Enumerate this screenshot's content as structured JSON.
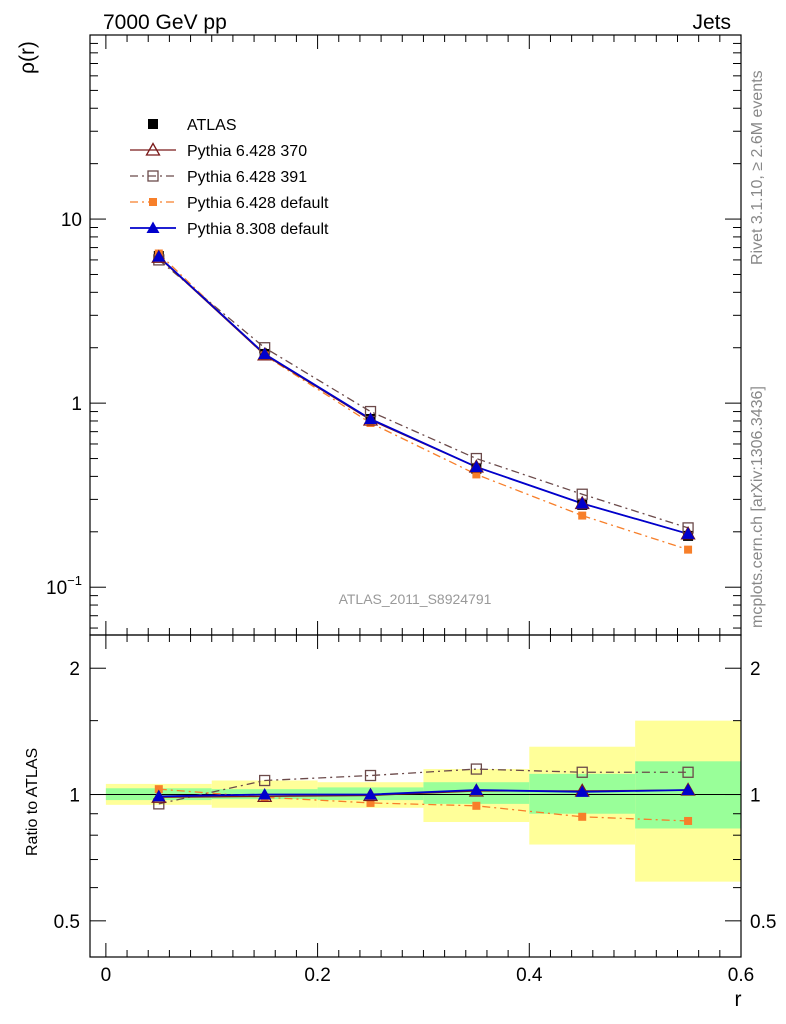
{
  "header": {
    "left": "7000 GeV pp",
    "right": "Jets"
  },
  "side_labels": {
    "rivet": "Rivet 3.1.10, ≥ 2.6M events",
    "mcplots": "mcplots.cern.ch [arXiv:1306.3436]"
  },
  "watermark": "ATLAS_2011_S8924791",
  "colors": {
    "atlas": "#000000",
    "p370": "#7a1a1a",
    "p391": "#6b4a4a",
    "p6def": "#f77f2a",
    "p8def": "#0000cc",
    "band_inner": "#99ff99",
    "band_outer": "#ffff99"
  },
  "chart_data": [
    {
      "type": "line",
      "ylabel": "ρ(r)",
      "yscale": "log",
      "ylim": [
        0.055,
        100
      ],
      "xlim": [
        -0.015,
        0.6
      ],
      "y_ticks": [
        {
          "v": 10,
          "base": "10",
          "exp": ""
        },
        {
          "v": 1,
          "base": "1",
          "exp": ""
        },
        {
          "v": 0.1,
          "base": "10",
          "exp": "−1"
        }
      ],
      "x": [
        0.05,
        0.15,
        0.25,
        0.35,
        0.45,
        0.55
      ],
      "legend": [
        {
          "name": "ATLAS",
          "key": "atlas"
        },
        {
          "name": "Pythia 6.428 370",
          "key": "p370"
        },
        {
          "name": "Pythia 6.428 391",
          "key": "p391"
        },
        {
          "name": "Pythia 6.428 default",
          "key": "p6def"
        },
        {
          "name": "Pythia 8.308 default",
          "key": "p8def"
        }
      ],
      "series": [
        {
          "key": "atlas",
          "name": "ATLAS",
          "values": [
            6.3,
            1.85,
            0.82,
            0.44,
            0.28,
            0.19
          ]
        },
        {
          "key": "p370",
          "name": "Pythia 6.428 370",
          "values": [
            6.2,
            1.83,
            0.81,
            0.45,
            0.285,
            0.195
          ]
        },
        {
          "key": "p391",
          "name": "Pythia 6.428 391",
          "values": [
            6.0,
            2.0,
            0.9,
            0.5,
            0.32,
            0.21
          ]
        },
        {
          "key": "p6def",
          "name": "Pythia 6.428 default",
          "values": [
            6.5,
            1.82,
            0.78,
            0.41,
            0.245,
            0.16
          ]
        },
        {
          "key": "p8def",
          "name": "Pythia 8.308 default",
          "values": [
            6.25,
            1.85,
            0.82,
            0.45,
            0.285,
            0.195
          ]
        }
      ]
    },
    {
      "type": "line",
      "ylabel": "Ratio to ATLAS",
      "xlabel": "r",
      "yscale": "log",
      "ylim": [
        0.41,
        2.4
      ],
      "xlim": [
        -0.015,
        0.6
      ],
      "y_ticks": [
        {
          "v": 2,
          "label": "2"
        },
        {
          "v": 1,
          "label": "1"
        },
        {
          "v": 0.5,
          "label": "0.5"
        }
      ],
      "x_ticks": [
        {
          "v": 0,
          "label": "0"
        },
        {
          "v": 0.2,
          "label": "0.2"
        },
        {
          "v": 0.4,
          "label": "0.4"
        },
        {
          "v": 0.6,
          "label": "0.6"
        }
      ],
      "x": [
        0.05,
        0.15,
        0.25,
        0.35,
        0.45,
        0.55
      ],
      "bins": [
        [
          0,
          0.1
        ],
        [
          0.1,
          0.2
        ],
        [
          0.2,
          0.3
        ],
        [
          0.3,
          0.4
        ],
        [
          0.4,
          0.5
        ],
        [
          0.5,
          0.6
        ]
      ],
      "band_inner": [
        [
          0.97,
          1.035
        ],
        [
          0.975,
          1.03
        ],
        [
          0.97,
          1.04
        ],
        [
          0.95,
          1.07
        ],
        [
          0.9,
          1.12
        ],
        [
          0.83,
          1.2
        ]
      ],
      "band_outer": [
        [
          0.945,
          1.06
        ],
        [
          0.93,
          1.08
        ],
        [
          0.93,
          1.07
        ],
        [
          0.86,
          1.15
        ],
        [
          0.76,
          1.3
        ],
        [
          0.62,
          1.5
        ]
      ],
      "series": [
        {
          "key": "p370",
          "name": "Pythia 6.428 370",
          "values": [
            0.985,
            0.99,
            0.995,
            1.02,
            1.02,
            1.025
          ]
        },
        {
          "key": "p391",
          "name": "Pythia 6.428 391",
          "values": [
            0.95,
            1.08,
            1.11,
            1.15,
            1.13,
            1.13
          ]
        },
        {
          "key": "p6def",
          "name": "Pythia 6.428 default",
          "values": [
            1.03,
            0.985,
            0.955,
            0.94,
            0.885,
            0.865
          ]
        },
        {
          "key": "p8def",
          "name": "Pythia 8.308 default",
          "values": [
            0.99,
            1.0,
            1.0,
            1.025,
            1.015,
            1.025
          ]
        }
      ]
    }
  ]
}
